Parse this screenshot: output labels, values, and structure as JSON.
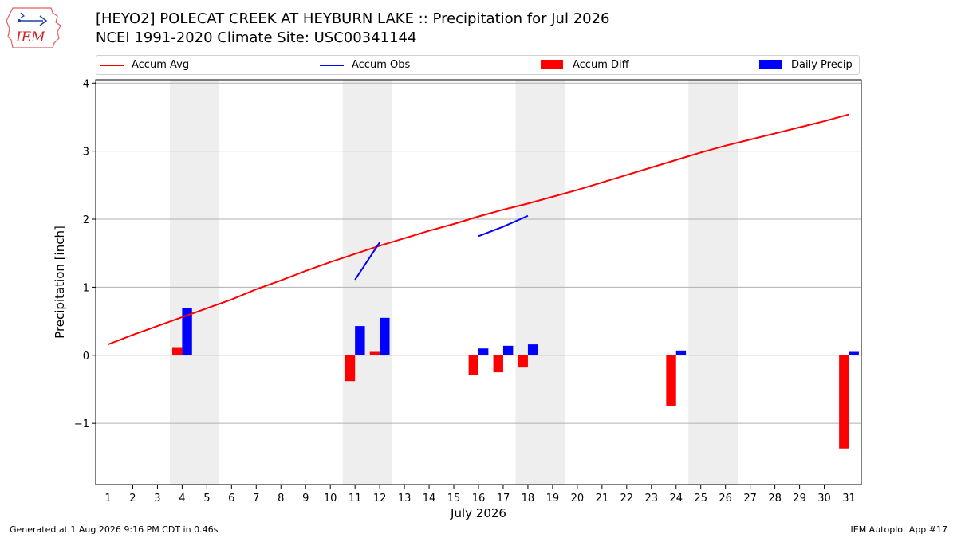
{
  "header": {
    "title_line1": "[HEYO2] POLECAT CREEK  AT HEYBURN LAKE :: Precipitation for Jul 2026",
    "title_line2": "NCEI 1991-2020 Climate Site: USC00341144",
    "logo_text": "IEM"
  },
  "footer": {
    "generated": "Generated at 1 Aug 2026 9:16 PM CDT in 0.46s",
    "app": "IEM Autoplot App #17"
  },
  "chart_data": {
    "type": "bar",
    "title": "[HEYO2] POLECAT CREEK  AT HEYBURN LAKE :: Precipitation for Jul 2026",
    "subtitle": "NCEI 1991-2020 Climate Site: USC00341144",
    "xlabel": "July 2026",
    "ylabel": "Precipitation [inch]",
    "xlim": [
      0.5,
      31.5
    ],
    "ylim": [
      -1.9,
      4.05
    ],
    "yticks": [
      -1,
      0,
      1,
      2,
      3,
      4
    ],
    "ytick_labels": [
      "−1",
      "0",
      "1",
      "2",
      "3",
      "4"
    ],
    "xticks": [
      1,
      2,
      3,
      4,
      5,
      6,
      7,
      8,
      9,
      10,
      11,
      12,
      13,
      14,
      15,
      16,
      17,
      18,
      19,
      20,
      21,
      22,
      23,
      24,
      25,
      26,
      27,
      28,
      29,
      30,
      31
    ],
    "grid": "horizontal",
    "legend_position": "top",
    "weekend_shading": [
      [
        3.5,
        5.5
      ],
      [
        10.5,
        12.5
      ],
      [
        17.5,
        19.5
      ],
      [
        24.5,
        26.5
      ]
    ],
    "colors": {
      "accum_avg": "#ff0000",
      "accum_obs": "#0000ff",
      "accum_diff": "#ff0000",
      "daily_precip": "#0000ff",
      "shading": "#eeeeee",
      "grid": "#b0b0b0"
    },
    "series": [
      {
        "name": "Accum Avg",
        "kind": "line",
        "x": [
          1,
          2,
          3,
          4,
          5,
          6,
          7,
          8,
          9,
          10,
          11,
          12,
          13,
          14,
          15,
          16,
          17,
          18,
          19,
          20,
          21,
          22,
          23,
          24,
          25,
          26,
          27,
          28,
          29,
          30,
          31
        ],
        "values": [
          0.16,
          0.3,
          0.43,
          0.56,
          0.69,
          0.82,
          0.97,
          1.1,
          1.24,
          1.37,
          1.49,
          1.61,
          1.72,
          1.83,
          1.93,
          2.04,
          2.14,
          2.23,
          2.33,
          2.43,
          2.54,
          2.65,
          2.76,
          2.87,
          2.98,
          3.08,
          3.17,
          3.26,
          3.35,
          3.44,
          3.54
        ]
      },
      {
        "name": "Accum Obs",
        "kind": "line",
        "segments": [
          {
            "x": [
              11,
              12
            ],
            "values": [
              1.11,
              1.66
            ]
          },
          {
            "x": [
              16,
              17,
              18
            ],
            "values": [
              1.75,
              1.89,
              2.05
            ]
          }
        ]
      },
      {
        "name": "Accum Diff",
        "kind": "bar",
        "x": [
          4,
          11,
          12,
          16,
          17,
          18,
          24,
          31
        ],
        "values": [
          0.12,
          -0.38,
          0.05,
          -0.29,
          -0.25,
          -0.18,
          -0.74,
          -1.37
        ]
      },
      {
        "name": "Daily Precip",
        "kind": "bar",
        "x": [
          4,
          11,
          12,
          16,
          17,
          18,
          24,
          31
        ],
        "values": [
          0.69,
          0.43,
          0.55,
          0.1,
          0.14,
          0.16,
          0.07,
          0.05
        ]
      }
    ]
  }
}
